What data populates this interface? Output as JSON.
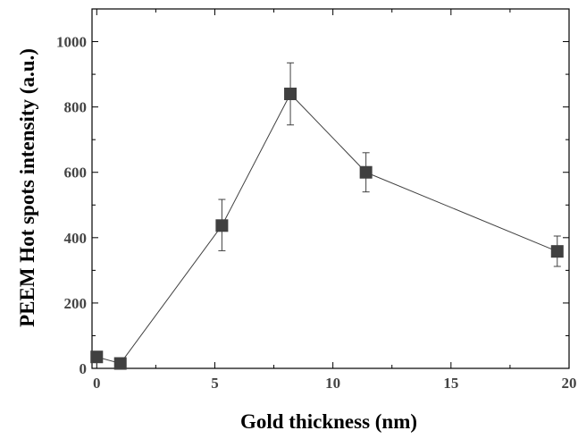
{
  "chart_data": {
    "type": "scatter",
    "title": "",
    "xlabel": "Gold thickness (nm)",
    "ylabel": "PEEM Hot spots intensity (a.u.)",
    "xlim": [
      -0.2,
      20
    ],
    "ylim": [
      0,
      1100
    ],
    "xticks": [
      0,
      5,
      10,
      15,
      20
    ],
    "yticks": [
      0,
      200,
      400,
      600,
      800,
      1000
    ],
    "grid": false,
    "legend": "none",
    "series": [
      {
        "x": [
          0,
          1,
          5.3,
          8.2,
          11.4,
          19.5
        ],
        "y": [
          35,
          15,
          437,
          840,
          600,
          358
        ],
        "yerr_low": [
          null,
          null,
          360,
          745,
          540,
          312
        ],
        "yerr_high": [
          null,
          null,
          517,
          935,
          660,
          405
        ],
        "marker": "square",
        "line": "solid",
        "color": "#404040"
      }
    ]
  }
}
